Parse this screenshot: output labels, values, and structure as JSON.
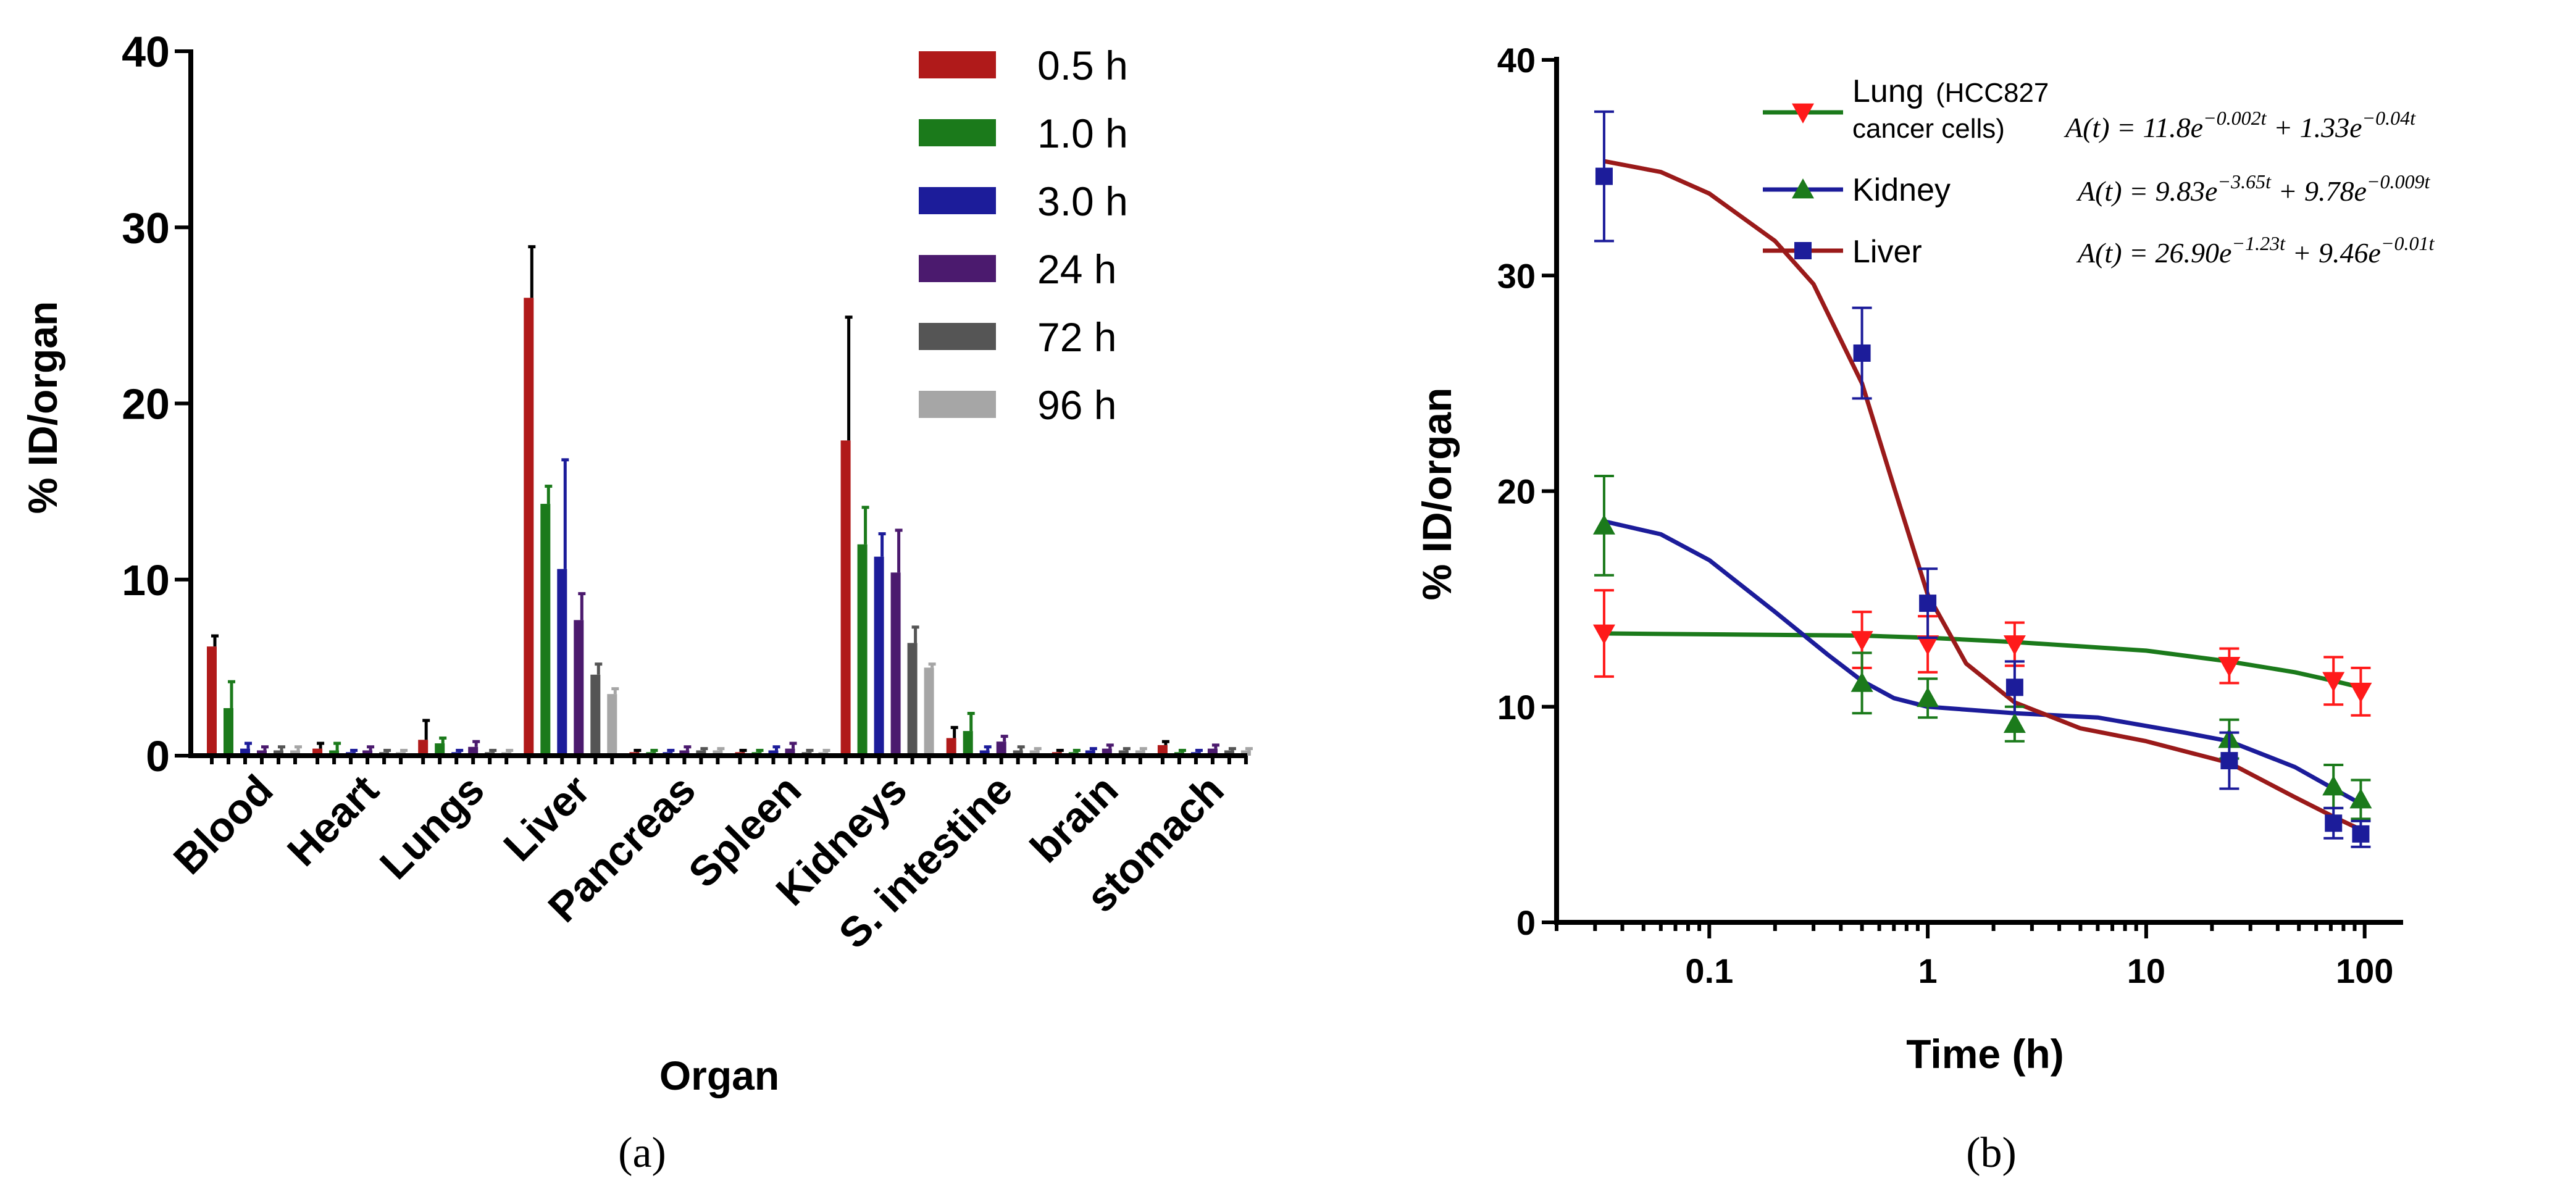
{
  "chart_data": [
    {
      "type": "bar",
      "panel_label": "(a)",
      "xlabel": "Organ",
      "ylabel": "% ID/organ",
      "ylim": [
        0,
        40
      ],
      "yticks": [
        "0",
        "10",
        "20",
        "30",
        "40"
      ],
      "grid": false,
      "legend_position": "top-right",
      "categories": [
        "Blood",
        "Heart",
        "Lungs",
        "Liver",
        "Pancreas",
        "Spleen",
        "Kidneys",
        "S. intestine",
        "brain",
        "stomach"
      ],
      "series": [
        {
          "name": "0.5 h",
          "color": "#b01a1a",
          "values": [
            6.2,
            0.4,
            0.9,
            26.0,
            0.2,
            0.2,
            17.9,
            1.0,
            0.2,
            0.6
          ],
          "errors": [
            0.6,
            0.3,
            1.1,
            2.9,
            0.1,
            0.1,
            7.0,
            0.6,
            0.1,
            0.2
          ]
        },
        {
          "name": "1.0 h",
          "color": "#1b7a1b",
          "values": [
            2.7,
            0.3,
            0.7,
            14.3,
            0.2,
            0.2,
            12.0,
            1.4,
            0.2,
            0.2
          ],
          "errors": [
            1.5,
            0.4,
            0.3,
            1.0,
            0.1,
            0.1,
            2.1,
            1.0,
            0.1,
            0.1
          ]
        },
        {
          "name": "3.0 h",
          "color": "#1c1c9a",
          "values": [
            0.4,
            0.2,
            0.2,
            10.6,
            0.2,
            0.3,
            11.3,
            0.3,
            0.3,
            0.2
          ],
          "errors": [
            0.3,
            0.1,
            0.1,
            6.2,
            0.1,
            0.2,
            1.3,
            0.2,
            0.1,
            0.1
          ]
        },
        {
          "name": "24 h",
          "color": "#4b1a6e",
          "values": [
            0.3,
            0.3,
            0.5,
            7.7,
            0.3,
            0.4,
            10.4,
            0.8,
            0.4,
            0.4
          ],
          "errors": [
            0.2,
            0.2,
            0.3,
            1.5,
            0.2,
            0.3,
            2.4,
            0.3,
            0.2,
            0.2
          ]
        },
        {
          "name": "72 h",
          "color": "#555555",
          "values": [
            0.3,
            0.2,
            0.2,
            4.6,
            0.3,
            0.2,
            6.4,
            0.3,
            0.3,
            0.3
          ],
          "errors": [
            0.2,
            0.1,
            0.1,
            0.6,
            0.1,
            0.1,
            0.9,
            0.2,
            0.1,
            0.1
          ]
        },
        {
          "name": "96 h",
          "color": "#a6a6a6",
          "values": [
            0.3,
            0.2,
            0.2,
            3.5,
            0.3,
            0.2,
            5.0,
            0.3,
            0.3,
            0.3
          ],
          "errors": [
            0.2,
            0.1,
            0.1,
            0.3,
            0.1,
            0.1,
            0.2,
            0.1,
            0.1,
            0.1
          ]
        }
      ]
    },
    {
      "type": "scatter",
      "panel_label": "(b)",
      "xlabel": "Time (h)",
      "ylabel": "% ID/organ",
      "xscale": "log",
      "xlim": [
        0.02,
        150
      ],
      "ylim": [
        0,
        40
      ],
      "xticks": [
        "0.1",
        "1",
        "10",
        "100"
      ],
      "yticks": [
        "0",
        "10",
        "20",
        "30",
        "40"
      ],
      "grid": false,
      "legend_position": "top-right",
      "series": [
        {
          "name": "Lung (HCC827 cancer cells)",
          "label_main": "Lung",
          "label_paren": "(HCC827",
          "label_line2": "cancer cells)",
          "marker": "triangle-down",
          "marker_color": "#ff1a1a",
          "error_color": "#ff1a1a",
          "line_color": "#1b7a1b",
          "equation": "A(t) = 11.8e^{−0.002t} + 1.33e^{−0.04t}",
          "eq_parts": [
            "A(t) = 11.8e",
            "−0.002t",
            " + 1.33e",
            "−0.04t"
          ],
          "points": [
            {
              "x": 0.033,
              "y": 13.4,
              "err": 2.0
            },
            {
              "x": 0.5,
              "y": 13.1,
              "err": 1.3
            },
            {
              "x": 1.0,
              "y": 12.9,
              "err": 1.3
            },
            {
              "x": 2.5,
              "y": 12.9,
              "err": 1.0
            },
            {
              "x": 24,
              "y": 11.9,
              "err": 0.8
            },
            {
              "x": 72,
              "y": 11.2,
              "err": 1.1
            },
            {
              "x": 96,
              "y": 10.7,
              "err": 1.1
            }
          ],
          "curve": [
            [
              0.033,
              13.4
            ],
            [
              0.5,
              13.3
            ],
            [
              1,
              13.2
            ],
            [
              2.5,
              13.0
            ],
            [
              10,
              12.6
            ],
            [
              24,
              12.1
            ],
            [
              48,
              11.6
            ],
            [
              72,
              11.2
            ],
            [
              96,
              10.9
            ]
          ]
        },
        {
          "name": "Kidney",
          "label_main": "Kidney",
          "marker": "triangle-up",
          "marker_color": "#1b7a1b",
          "error_color": "#1b7a1b",
          "line_color": "#1c1c9a",
          "equation": "A(t) = 9.83e^{−3.65t} + 9.78e^{−0.009t}",
          "eq_parts": [
            "A(t) = 9.83e",
            "−3.65t",
            " + 9.78e",
            "−0.009t"
          ],
          "points": [
            {
              "x": 0.033,
              "y": 18.4,
              "err": 2.3
            },
            {
              "x": 0.5,
              "y": 11.1,
              "err": 1.4
            },
            {
              "x": 1.0,
              "y": 10.4,
              "err": 0.9
            },
            {
              "x": 2.5,
              "y": 9.2,
              "err": 0.8
            },
            {
              "x": 24,
              "y": 8.5,
              "err": 0.9
            },
            {
              "x": 72,
              "y": 6.3,
              "err": 1.0
            },
            {
              "x": 96,
              "y": 5.7,
              "err": 0.9
            }
          ],
          "curve": [
            [
              0.033,
              18.6
            ],
            [
              0.06,
              18.0
            ],
            [
              0.1,
              16.8
            ],
            [
              0.2,
              14.4
            ],
            [
              0.35,
              12.4
            ],
            [
              0.5,
              11.2
            ],
            [
              0.7,
              10.4
            ],
            [
              1,
              10.0
            ],
            [
              2.5,
              9.7
            ],
            [
              6,
              9.5
            ],
            [
              15,
              8.8
            ],
            [
              24,
              8.4
            ],
            [
              48,
              7.2
            ],
            [
              72,
              6.2
            ],
            [
              96,
              5.5
            ]
          ]
        },
        {
          "name": "Liver",
          "label_main": "Liver",
          "marker": "square",
          "marker_color": "#1c1c9a",
          "error_color": "#1c1c9a",
          "line_color": "#9a1a1a",
          "equation": "A(t) = 26.90e^{−1.23t} + 9.46e^{−0.01t}",
          "eq_parts": [
            "A(t) = 26.90e",
            "−1.23t",
            " + 9.46e",
            "−0.01t"
          ],
          "points": [
            {
              "x": 0.033,
              "y": 34.6,
              "err": 3.0
            },
            {
              "x": 0.5,
              "y": 26.4,
              "err": 2.1
            },
            {
              "x": 1.0,
              "y": 14.8,
              "err": 1.6
            },
            {
              "x": 2.5,
              "y": 10.9,
              "err": 1.2
            },
            {
              "x": 24,
              "y": 7.5,
              "err": 1.3
            },
            {
              "x": 72,
              "y": 4.6,
              "err": 0.7
            },
            {
              "x": 96,
              "y": 4.1,
              "err": 0.6
            }
          ],
          "curve": [
            [
              0.033,
              35.3
            ],
            [
              0.06,
              34.8
            ],
            [
              0.1,
              33.8
            ],
            [
              0.2,
              31.6
            ],
            [
              0.3,
              29.6
            ],
            [
              0.5,
              25.0
            ],
            [
              0.7,
              20.2
            ],
            [
              1,
              15.2
            ],
            [
              1.5,
              12.0
            ],
            [
              2.5,
              10.2
            ],
            [
              5,
              9.0
            ],
            [
              10,
              8.4
            ],
            [
              24,
              7.4
            ],
            [
              48,
              5.8
            ],
            [
              72,
              4.9
            ],
            [
              96,
              4.3
            ]
          ]
        }
      ]
    }
  ]
}
